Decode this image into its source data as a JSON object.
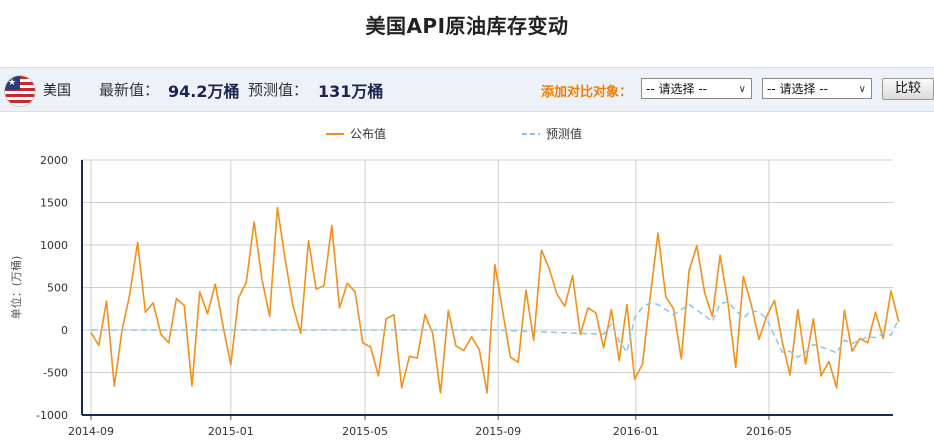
{
  "page": {
    "title": "美国API原油库存变动"
  },
  "infobar": {
    "country": "美国",
    "latest_label": "最新值：",
    "latest_value": "94.2万桶",
    "forecast_label": "预测值：",
    "forecast_value": "131万桶",
    "compare_label": "添加对比对象：",
    "select1_value": "-- 请选择 --",
    "select2_value": "-- 请选择 --",
    "compare_button": "比较"
  },
  "colors": {
    "published": "#f39019",
    "forecast": "#8ec3ea",
    "accent": "#f07d00"
  },
  "chart_data": {
    "type": "line",
    "ylabel": "单位：(万桶)",
    "ylim": [
      -1000,
      2000
    ],
    "yticks": [
      -1000,
      -500,
      0,
      500,
      1000,
      1500,
      2000
    ],
    "xlim": [
      "2014-08-27",
      "2016-08-17"
    ],
    "x_ticks": [
      "2014-09",
      "2015-01",
      "2015-05",
      "2015-09",
      "2016-01",
      "2016-05"
    ],
    "x_tick_dates": [
      "2014-08-27",
      "2014-12-31",
      "2015-05-01",
      "2015-08-29",
      "2015-12-31",
      "2016-04-29"
    ],
    "legend": [
      "公布值",
      "预测值"
    ],
    "legend_position": "top-center",
    "grid": true,
    "series": [
      {
        "name": "公布值",
        "style": "solid",
        "points": [
          [
            "2014-08-27",
            -30
          ],
          [
            "2014-09-03",
            -180
          ],
          [
            "2014-09-10",
            340
          ],
          [
            "2014-09-17",
            -660
          ],
          [
            "2014-09-24",
            0
          ],
          [
            "2014-10-01",
            420
          ],
          [
            "2014-10-08",
            1030
          ],
          [
            "2014-10-15",
            210
          ],
          [
            "2014-10-22",
            320
          ],
          [
            "2014-10-29",
            -50
          ],
          [
            "2014-11-05",
            -150
          ],
          [
            "2014-11-12",
            370
          ],
          [
            "2014-11-19",
            290
          ],
          [
            "2014-11-26",
            -660
          ],
          [
            "2014-12-03",
            450
          ],
          [
            "2014-12-10",
            190
          ],
          [
            "2014-12-17",
            540
          ],
          [
            "2014-12-24",
            50
          ],
          [
            "2014-12-31",
            -410
          ],
          [
            "2015-01-07",
            380
          ],
          [
            "2015-01-14",
            560
          ],
          [
            "2015-01-21",
            1270
          ],
          [
            "2015-01-28",
            600
          ],
          [
            "2015-02-04",
            160
          ],
          [
            "2015-02-11",
            1440
          ],
          [
            "2015-02-18",
            830
          ],
          [
            "2015-02-25",
            290
          ],
          [
            "2015-03-04",
            -40
          ],
          [
            "2015-03-11",
            1050
          ],
          [
            "2015-03-18",
            480
          ],
          [
            "2015-03-25",
            520
          ],
          [
            "2015-04-01",
            1230
          ],
          [
            "2015-04-08",
            260
          ],
          [
            "2015-04-15",
            550
          ],
          [
            "2015-04-22",
            450
          ],
          [
            "2015-04-29",
            -150
          ],
          [
            "2015-05-06",
            -200
          ],
          [
            "2015-05-13",
            -540
          ],
          [
            "2015-05-20",
            130
          ],
          [
            "2015-05-27",
            180
          ],
          [
            "2015-06-03",
            -680
          ],
          [
            "2015-06-10",
            -310
          ],
          [
            "2015-06-17",
            -330
          ],
          [
            "2015-06-24",
            180
          ],
          [
            "2015-07-01",
            -40
          ],
          [
            "2015-07-08",
            -740
          ],
          [
            "2015-07-15",
            230
          ],
          [
            "2015-07-22",
            -190
          ],
          [
            "2015-07-29",
            -240
          ],
          [
            "2015-08-05",
            -80
          ],
          [
            "2015-08-12",
            -230
          ],
          [
            "2015-08-19",
            -740
          ],
          [
            "2015-08-26",
            770
          ],
          [
            "2015-09-02",
            220
          ],
          [
            "2015-09-09",
            -320
          ],
          [
            "2015-09-16",
            -380
          ],
          [
            "2015-09-23",
            470
          ],
          [
            "2015-09-30",
            -120
          ],
          [
            "2015-10-07",
            940
          ],
          [
            "2015-10-14",
            720
          ],
          [
            "2015-10-21",
            420
          ],
          [
            "2015-10-28",
            280
          ],
          [
            "2015-11-04",
            640
          ],
          [
            "2015-11-11",
            -50
          ],
          [
            "2015-11-18",
            260
          ],
          [
            "2015-11-25",
            200
          ],
          [
            "2015-12-02",
            -210
          ],
          [
            "2015-12-09",
            240
          ],
          [
            "2015-12-16",
            -360
          ],
          [
            "2015-12-23",
            300
          ],
          [
            "2015-12-30",
            -580
          ],
          [
            "2016-01-06",
            -400
          ],
          [
            "2016-01-13",
            390
          ],
          [
            "2016-01-20",
            1140
          ],
          [
            "2016-01-27",
            390
          ],
          [
            "2016-02-03",
            250
          ],
          [
            "2016-02-10",
            -340
          ],
          [
            "2016-02-17",
            700
          ],
          [
            "2016-02-24",
            990
          ],
          [
            "2016-03-02",
            440
          ],
          [
            "2016-03-09",
            160
          ],
          [
            "2016-03-16",
            880
          ],
          [
            "2016-03-23",
            320
          ],
          [
            "2016-03-30",
            -440
          ],
          [
            "2016-04-06",
            630
          ],
          [
            "2016-04-13",
            300
          ],
          [
            "2016-04-20",
            -110
          ],
          [
            "2016-04-27",
            160
          ],
          [
            "2016-05-04",
            350
          ],
          [
            "2016-05-11",
            -140
          ],
          [
            "2016-05-18",
            -530
          ],
          [
            "2016-05-25",
            240
          ],
          [
            "2016-06-01",
            -400
          ],
          [
            "2016-06-08",
            130
          ],
          [
            "2016-06-15",
            -540
          ],
          [
            "2016-06-22",
            -370
          ],
          [
            "2016-06-29",
            -680
          ],
          [
            "2016-07-06",
            230
          ],
          [
            "2016-07-13",
            -250
          ],
          [
            "2016-07-20",
            -100
          ],
          [
            "2016-07-27",
            -150
          ],
          [
            "2016-08-03",
            210
          ],
          [
            "2016-08-10",
            -100
          ],
          [
            "2016-08-17",
            460
          ],
          [
            "2016-08-24",
            94.2
          ]
        ]
      },
      {
        "name": "预测值",
        "style": "dashed",
        "points": [
          [
            "2014-08-27",
            0
          ],
          [
            "2014-11-26",
            0
          ],
          [
            "2015-02-25",
            0
          ],
          [
            "2015-03-25",
            0
          ],
          [
            "2015-06-10",
            0
          ],
          [
            "2015-08-26",
            0
          ],
          [
            "2015-12-02",
            -50
          ],
          [
            "2015-12-09",
            70
          ],
          [
            "2015-12-16",
            -130
          ],
          [
            "2015-12-23",
            -260
          ],
          [
            "2015-12-30",
            140
          ],
          [
            "2016-01-06",
            270
          ],
          [
            "2016-01-13",
            320
          ],
          [
            "2016-01-20",
            300
          ],
          [
            "2016-02-03",
            180
          ],
          [
            "2016-02-17",
            300
          ],
          [
            "2016-03-09",
            100
          ],
          [
            "2016-03-16",
            310
          ],
          [
            "2016-03-23",
            330
          ],
          [
            "2016-03-30",
            230
          ],
          [
            "2016-04-06",
            140
          ],
          [
            "2016-04-13",
            230
          ],
          [
            "2016-04-20",
            210
          ],
          [
            "2016-04-27",
            130
          ],
          [
            "2016-05-04",
            -70
          ],
          [
            "2016-05-11",
            -260
          ],
          [
            "2016-05-18",
            -250
          ],
          [
            "2016-05-25",
            -320
          ],
          [
            "2016-06-01",
            -260
          ],
          [
            "2016-06-08",
            -170
          ],
          [
            "2016-06-15",
            -200
          ],
          [
            "2016-06-22",
            -230
          ],
          [
            "2016-06-29",
            -270
          ],
          [
            "2016-07-06",
            -120
          ],
          [
            "2016-07-13",
            -160
          ],
          [
            "2016-07-20",
            -120
          ],
          [
            "2016-07-27",
            -80
          ],
          [
            "2016-08-03",
            -90
          ],
          [
            "2016-08-10",
            -40
          ],
          [
            "2016-08-17",
            -60
          ],
          [
            "2016-08-24",
            131
          ]
        ]
      }
    ]
  }
}
